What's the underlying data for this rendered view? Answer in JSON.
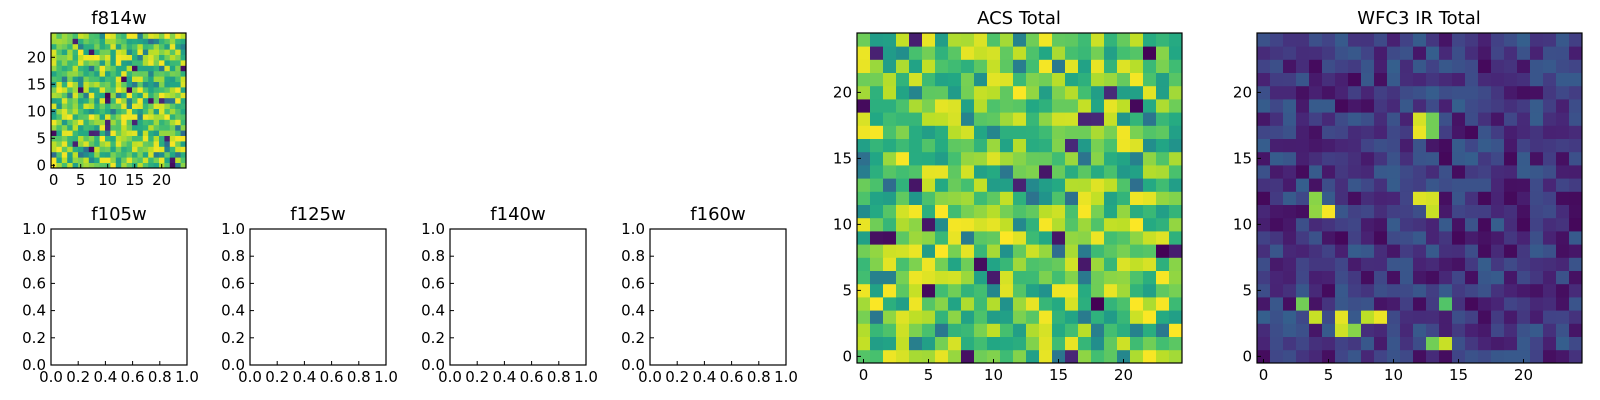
{
  "chart_data": [
    {
      "id": "f814w",
      "type": "heatmap",
      "title": "f814w",
      "grid_size": 25,
      "colormap": "viridis",
      "xticks": [
        0,
        5,
        10,
        15,
        20
      ],
      "yticks": [
        0,
        5,
        10,
        15,
        20
      ],
      "xlim": [
        -0.5,
        24.5
      ],
      "ylim": [
        -0.5,
        24.5
      ],
      "value_style": "acs"
    },
    {
      "id": "f105w",
      "type": "heatmap",
      "title": "f105w",
      "empty": true,
      "xlim": [
        0.0,
        1.0
      ],
      "ylim": [
        0.0,
        1.0
      ],
      "xticks": [
        "0.0",
        "0.2",
        "0.4",
        "0.6",
        "0.8",
        "1.0"
      ],
      "yticks": [
        "0.0",
        "0.2",
        "0.4",
        "0.6",
        "0.8",
        "1.0"
      ]
    },
    {
      "id": "f125w",
      "type": "heatmap",
      "title": "f125w",
      "empty": true,
      "xlim": [
        0.0,
        1.0
      ],
      "ylim": [
        0.0,
        1.0
      ],
      "xticks": [
        "0.0",
        "0.2",
        "0.4",
        "0.6",
        "0.8",
        "1.0"
      ],
      "yticks": [
        "0.0",
        "0.2",
        "0.4",
        "0.6",
        "0.8",
        "1.0"
      ]
    },
    {
      "id": "f140w",
      "type": "heatmap",
      "title": "f140w",
      "empty": true,
      "xlim": [
        0.0,
        1.0
      ],
      "ylim": [
        0.0,
        1.0
      ],
      "xticks": [
        "0.0",
        "0.2",
        "0.4",
        "0.6",
        "0.8",
        "1.0"
      ],
      "yticks": [
        "0.0",
        "0.2",
        "0.4",
        "0.6",
        "0.8",
        "1.0"
      ]
    },
    {
      "id": "f160w",
      "type": "heatmap",
      "title": "f160w",
      "empty": true,
      "xlim": [
        0.0,
        1.0
      ],
      "ylim": [
        0.0,
        1.0
      ],
      "xticks": [
        "0.0",
        "0.2",
        "0.4",
        "0.6",
        "0.8",
        "1.0"
      ],
      "yticks": [
        "0.0",
        "0.2",
        "0.4",
        "0.6",
        "0.8",
        "1.0"
      ]
    },
    {
      "id": "acs-total",
      "type": "heatmap",
      "title": "ACS Total",
      "grid_size": 25,
      "colormap": "viridis",
      "xticks": [
        0,
        5,
        10,
        15,
        20
      ],
      "yticks": [
        0,
        5,
        10,
        15,
        20
      ],
      "xlim": [
        -0.5,
        24.5
      ],
      "ylim": [
        -0.5,
        24.5
      ],
      "value_style": "acs"
    },
    {
      "id": "wfc3-ir-total",
      "type": "heatmap",
      "title": "WFC3 IR Total",
      "grid_size": 25,
      "colormap": "viridis",
      "xticks": [
        0,
        5,
        10,
        15,
        20
      ],
      "yticks": [
        0,
        5,
        10,
        15,
        20
      ],
      "xlim": [
        -0.5,
        24.5
      ],
      "ylim": [
        -0.5,
        24.5
      ],
      "value_style": "ir",
      "bright_cells": [
        [
          6,
          2
        ],
        [
          6,
          3
        ],
        [
          7,
          2
        ],
        [
          8,
          3
        ],
        [
          13,
          1
        ],
        [
          14,
          1
        ],
        [
          12,
          17
        ],
        [
          12,
          18
        ],
        [
          13,
          17
        ],
        [
          13,
          18
        ],
        [
          4,
          11
        ],
        [
          5,
          11
        ],
        [
          4,
          12
        ],
        [
          12,
          12
        ],
        [
          13,
          11
        ],
        [
          13,
          12
        ],
        [
          3,
          4
        ],
        [
          4,
          3
        ],
        [
          14,
          4
        ],
        [
          9,
          3
        ]
      ]
    }
  ]
}
